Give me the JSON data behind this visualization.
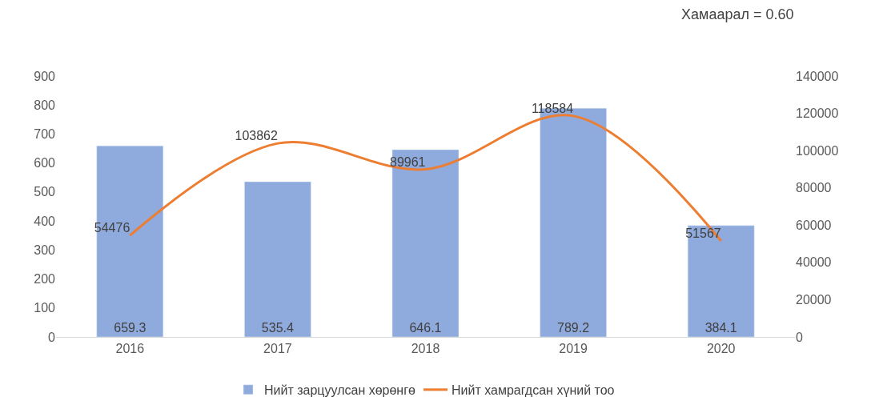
{
  "chart_data": {
    "type": "bar",
    "categories": [
      "2016",
      "2017",
      "2018",
      "2019",
      "2020"
    ],
    "series": [
      {
        "name": "Нийт зарцуулсан хөрөнгө",
        "color": "#8faadc",
        "values": [
          659.3,
          535.4,
          646.1,
          789.2,
          384.1
        ]
      },
      {
        "name": "Нийт хамрагдсан хүний тоо",
        "color": "#ed7d31",
        "type": "line",
        "axis": "y2",
        "values": [
          54476,
          103862,
          89961,
          118584,
          51567
        ]
      }
    ],
    "ylim": [
      0,
      900
    ],
    "yticks": [
      0,
      100,
      200,
      300,
      400,
      500,
      600,
      700,
      800,
      900
    ],
    "y2lim": [
      0,
      140000
    ],
    "y2ticks": [
      0,
      20000,
      40000,
      60000,
      80000,
      100000,
      120000,
      140000
    ],
    "annotations": [
      "Хамаарал = 0.60"
    ],
    "data_labels": true,
    "grid": false,
    "legend": "bottom",
    "marker": "none"
  }
}
